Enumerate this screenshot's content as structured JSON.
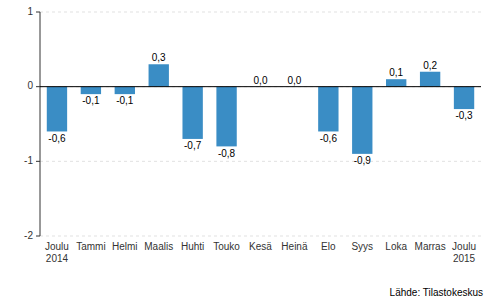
{
  "chart_data": {
    "type": "bar",
    "categories": [
      "Joulu\n2014",
      "Tammi",
      "Helmi",
      "Maalis",
      "Huhti",
      "Touko",
      "Kesä",
      "Heinä",
      "Elo",
      "Syys",
      "Loka",
      "Marras",
      "Joulu\n2015"
    ],
    "values": [
      -0.6,
      -0.1,
      -0.1,
      0.3,
      -0.7,
      -0.8,
      0.0,
      0.0,
      -0.6,
      -0.9,
      0.1,
      0.2,
      -0.3
    ],
    "value_labels": [
      "-0,6",
      "-0,1",
      "-0,1",
      "0,3",
      "-0,7",
      "-0,8",
      "0,0",
      "0,0",
      "-0,6",
      "-0,9",
      "0,1",
      "0,2",
      "-0,3"
    ],
    "data_labels": true,
    "color": "#3a8dc5",
    "ylim": [
      -2,
      1
    ],
    "yticks": [
      -2,
      -1,
      0,
      1
    ],
    "grid": true,
    "annotations": [
      "Lähde: Tilastokeskus"
    ]
  }
}
